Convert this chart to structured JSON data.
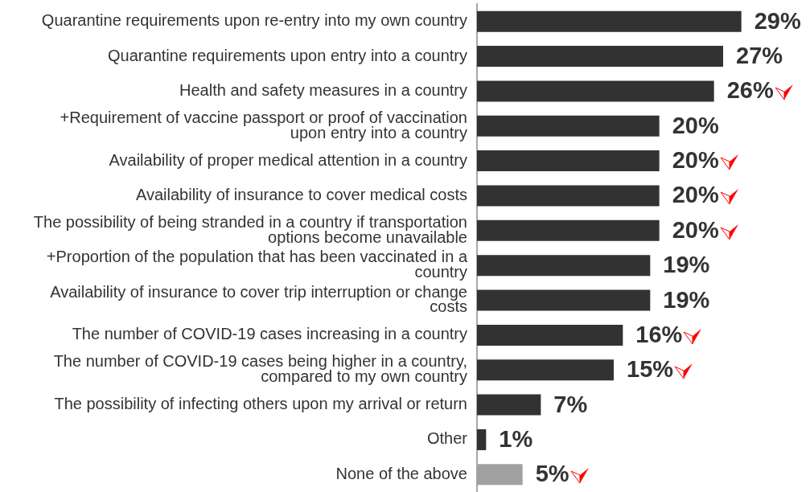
{
  "chart_data": {
    "type": "bar",
    "orientation": "horizontal",
    "categories": [
      "Quarantine requirements upon re-entry into my own country",
      "Quarantine requirements upon entry into a country",
      "Health and safety measures in a country",
      "+Requirement of vaccine passport or proof of vaccination upon entry into a country",
      "Availability of proper medical attention in a country",
      "Availability of insurance to cover medical costs",
      "The possibility of being stranded in a country if transportation options become unavailable",
      "+Proportion of the population that has been vaccinated in a country",
      "Availability of insurance to cover trip interruption or change costs",
      "The number of COVID-19 cases increasing in a country",
      "The number of COVID-19 cases being higher in a country, compared to my own country",
      "The possibility of infecting others upon my arrival or return",
      "Other",
      "None of the above"
    ],
    "values": [
      29,
      27,
      26,
      20,
      20,
      20,
      20,
      19,
      19,
      16,
      15,
      7,
      1,
      5
    ],
    "colors": [
      "#323232",
      "#323232",
      "#323232",
      "#323232",
      "#323232",
      "#323232",
      "#323232",
      "#323232",
      "#323232",
      "#323232",
      "#323232",
      "#323232",
      "#323232",
      "#a0a0a0"
    ],
    "value_labels": [
      "29%",
      "27%",
      "26%",
      "20%",
      "20%",
      "20%",
      "20%",
      "19%",
      "19%",
      "16%",
      "15%",
      "7%",
      "1%",
      "5%"
    ],
    "tick_labels": "y"
  }
}
